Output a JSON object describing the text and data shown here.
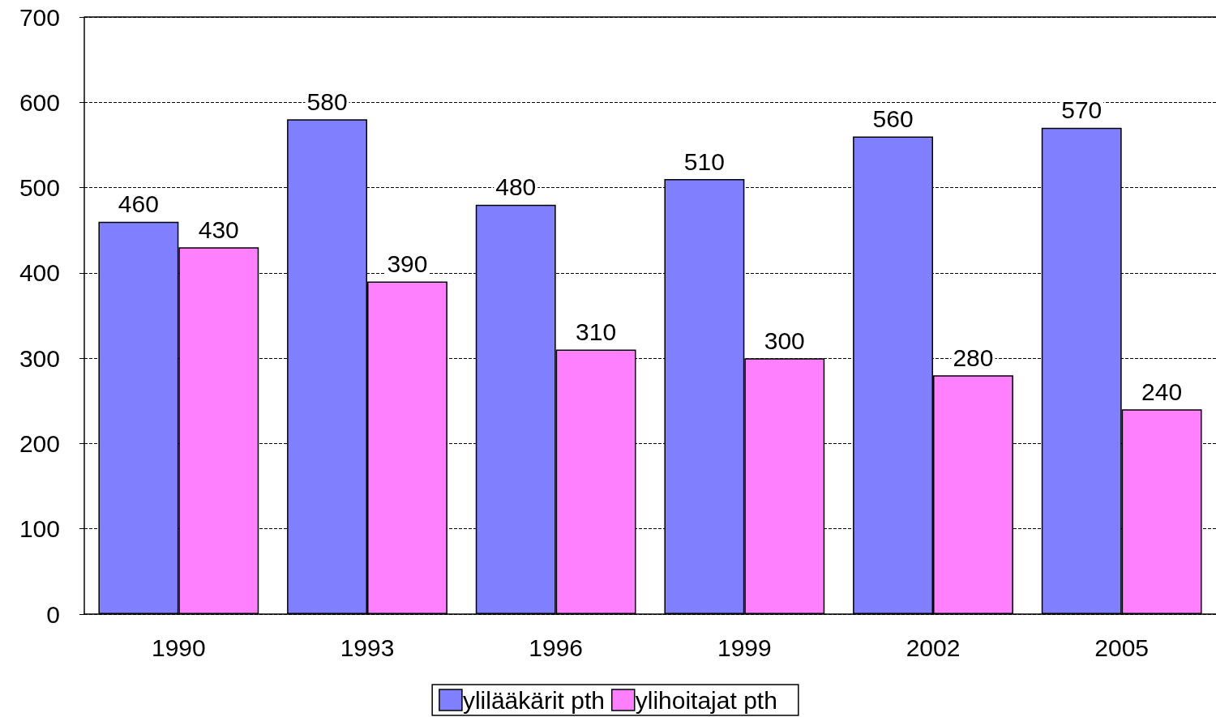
{
  "chart_data": {
    "type": "bar",
    "categories": [
      "1990",
      "1993",
      "1996",
      "1999",
      "2002",
      "2005"
    ],
    "series": [
      {
        "name": "ylilääkärit pth",
        "color": "#8080ff",
        "values": [
          460,
          580,
          480,
          510,
          560,
          570
        ]
      },
      {
        "name": "ylihoitajat pth",
        "color": "#ff80ff",
        "values": [
          430,
          390,
          310,
          300,
          280,
          240
        ]
      }
    ],
    "ylim": [
      0,
      700
    ],
    "yticks": [
      0,
      100,
      200,
      300,
      400,
      500,
      600,
      700
    ],
    "grid": "y",
    "line_style": "dashed",
    "legend": "bottom",
    "data_labels": true
  }
}
